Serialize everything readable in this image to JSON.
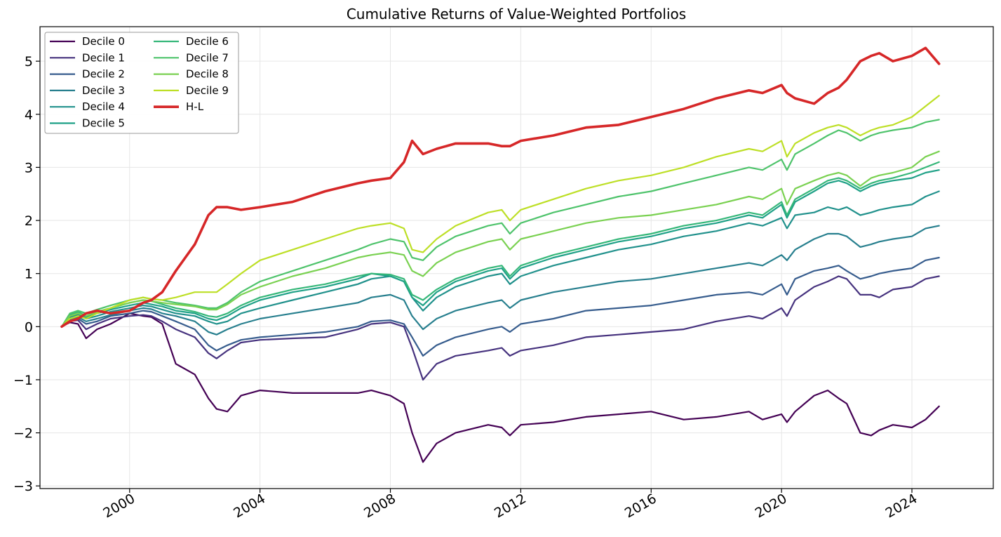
{
  "chart_data": {
    "type": "line",
    "title": "Cumulative Returns of Value-Weighted Portfolios",
    "xlabel": "",
    "ylabel": "",
    "x_ticks": [
      "2000",
      "2004",
      "2008",
      "2012",
      "2016",
      "2020",
      "2024"
    ],
    "y_ticks": [
      "−3",
      "−2",
      "−1",
      "0",
      "1",
      "2",
      "3",
      "4",
      "5"
    ],
    "xlim": [
      "1997-04-01",
      "2026-06-30"
    ],
    "ylim": [
      -3.05,
      5.65
    ],
    "grid": true,
    "legend_position": "top-left",
    "x_dates": [
      "1997-12",
      "1998-03",
      "1998-06",
      "1998-09",
      "1999-01",
      "1999-06",
      "2000-01",
      "2000-06",
      "2000-09",
      "2001-01",
      "2001-06",
      "2002-01",
      "2002-06",
      "2002-09",
      "2003-01",
      "2003-06",
      "2004-01",
      "2005-01",
      "2006-01",
      "2007-01",
      "2007-06",
      "2008-01",
      "2008-06",
      "2008-09",
      "2009-01",
      "2009-06",
      "2010-01",
      "2011-01",
      "2011-06",
      "2011-09",
      "2012-01",
      "2013-01",
      "2014-01",
      "2015-01",
      "2016-01",
      "2017-01",
      "2018-01",
      "2019-01",
      "2019-06",
      "2020-01",
      "2020-03",
      "2020-06",
      "2021-01",
      "2021-06",
      "2021-10",
      "2022-01",
      "2022-06",
      "2022-10",
      "2023-01",
      "2023-06",
      "2024-01",
      "2024-06",
      "2024-11"
    ],
    "series": [
      {
        "name": "Decile 0",
        "color": "#440154",
        "width": 2.2,
        "values": [
          0.0,
          0.08,
          0.05,
          -0.22,
          -0.05,
          0.05,
          0.25,
          0.2,
          0.18,
          0.05,
          -0.7,
          -0.9,
          -1.35,
          -1.55,
          -1.6,
          -1.3,
          -1.2,
          -1.25,
          -1.25,
          -1.25,
          -1.2,
          -1.3,
          -1.45,
          -2.0,
          -2.55,
          -2.2,
          -2.0,
          -1.85,
          -1.9,
          -2.05,
          -1.85,
          -1.8,
          -1.7,
          -1.65,
          -1.6,
          -1.75,
          -1.7,
          -1.6,
          -1.75,
          -1.65,
          -1.8,
          -1.6,
          -1.3,
          -1.2,
          -1.35,
          -1.45,
          -2.0,
          -2.05,
          -1.95,
          -1.85,
          -1.9,
          -1.75,
          -1.5
        ]
      },
      {
        "name": "Decile 1",
        "color": "#46327e",
        "width": 2.2,
        "values": [
          0.0,
          0.1,
          0.12,
          -0.05,
          0.05,
          0.15,
          0.2,
          0.22,
          0.2,
          0.1,
          -0.05,
          -0.2,
          -0.5,
          -0.6,
          -0.45,
          -0.3,
          -0.25,
          -0.22,
          -0.2,
          -0.05,
          0.05,
          0.08,
          0.0,
          -0.4,
          -1.0,
          -0.7,
          -0.55,
          -0.45,
          -0.4,
          -0.55,
          -0.45,
          -0.35,
          -0.2,
          -0.15,
          -0.1,
          -0.05,
          0.1,
          0.2,
          0.15,
          0.35,
          0.2,
          0.5,
          0.75,
          0.85,
          0.95,
          0.9,
          0.6,
          0.6,
          0.55,
          0.7,
          0.75,
          0.9,
          0.95
        ]
      },
      {
        "name": "Decile 2",
        "color": "#365c8d",
        "width": 2.2,
        "values": [
          0.0,
          0.12,
          0.15,
          0.05,
          0.1,
          0.2,
          0.25,
          0.3,
          0.28,
          0.2,
          0.1,
          -0.05,
          -0.35,
          -0.45,
          -0.35,
          -0.25,
          -0.2,
          -0.15,
          -0.1,
          0.0,
          0.1,
          0.12,
          0.05,
          -0.2,
          -0.55,
          -0.35,
          -0.2,
          -0.05,
          0.0,
          -0.1,
          0.05,
          0.15,
          0.3,
          0.35,
          0.4,
          0.5,
          0.6,
          0.65,
          0.6,
          0.8,
          0.6,
          0.9,
          1.05,
          1.1,
          1.15,
          1.05,
          0.9,
          0.95,
          1.0,
          1.05,
          1.1,
          1.25,
          1.3
        ]
      },
      {
        "name": "Decile 3",
        "color": "#277f8e",
        "width": 2.2,
        "values": [
          0.0,
          0.15,
          0.18,
          0.1,
          0.15,
          0.22,
          0.3,
          0.35,
          0.33,
          0.25,
          0.2,
          0.1,
          -0.1,
          -0.15,
          -0.05,
          0.05,
          0.15,
          0.25,
          0.35,
          0.45,
          0.55,
          0.6,
          0.5,
          0.2,
          -0.05,
          0.15,
          0.3,
          0.45,
          0.5,
          0.35,
          0.5,
          0.65,
          0.75,
          0.85,
          0.9,
          1.0,
          1.1,
          1.2,
          1.15,
          1.35,
          1.25,
          1.45,
          1.65,
          1.75,
          1.75,
          1.7,
          1.5,
          1.55,
          1.6,
          1.65,
          1.7,
          1.85,
          1.9
        ]
      },
      {
        "name": "Decile 4",
        "color": "#21918c",
        "width": 2.2,
        "values": [
          0.0,
          0.18,
          0.22,
          0.15,
          0.2,
          0.28,
          0.35,
          0.4,
          0.38,
          0.32,
          0.25,
          0.2,
          0.1,
          0.05,
          0.1,
          0.25,
          0.35,
          0.5,
          0.65,
          0.8,
          0.9,
          0.95,
          0.85,
          0.55,
          0.3,
          0.55,
          0.75,
          0.95,
          1.0,
          0.8,
          0.95,
          1.15,
          1.3,
          1.45,
          1.55,
          1.7,
          1.8,
          1.95,
          1.9,
          2.05,
          1.85,
          2.1,
          2.15,
          2.25,
          2.2,
          2.25,
          2.1,
          2.15,
          2.2,
          2.25,
          2.3,
          2.45,
          2.55
        ]
      },
      {
        "name": "Decile 5",
        "color": "#1fa187",
        "width": 2.2,
        "values": [
          0.0,
          0.2,
          0.25,
          0.18,
          0.25,
          0.32,
          0.4,
          0.45,
          0.42,
          0.38,
          0.3,
          0.25,
          0.15,
          0.12,
          0.2,
          0.35,
          0.5,
          0.65,
          0.75,
          0.9,
          1.0,
          0.95,
          0.85,
          0.55,
          0.4,
          0.65,
          0.85,
          1.05,
          1.1,
          0.9,
          1.1,
          1.3,
          1.45,
          1.6,
          1.7,
          1.85,
          1.95,
          2.1,
          2.05,
          2.3,
          2.05,
          2.35,
          2.55,
          2.7,
          2.75,
          2.7,
          2.55,
          2.65,
          2.7,
          2.75,
          2.8,
          2.9,
          2.95
        ]
      },
      {
        "name": "Decile 6",
        "color": "#35b779",
        "width": 2.2,
        "values": [
          0.0,
          0.22,
          0.28,
          0.2,
          0.28,
          0.35,
          0.45,
          0.5,
          0.48,
          0.42,
          0.35,
          0.28,
          0.2,
          0.18,
          0.25,
          0.4,
          0.55,
          0.7,
          0.8,
          0.95,
          1.0,
          0.98,
          0.9,
          0.6,
          0.5,
          0.7,
          0.9,
          1.1,
          1.15,
          0.95,
          1.15,
          1.35,
          1.5,
          1.65,
          1.75,
          1.9,
          2.0,
          2.15,
          2.1,
          2.35,
          2.1,
          2.4,
          2.6,
          2.75,
          2.8,
          2.75,
          2.6,
          2.7,
          2.75,
          2.8,
          2.9,
          3.0,
          3.1
        ]
      },
      {
        "name": "Decile 7",
        "color": "#4ec36b",
        "width": 2.2,
        "values": [
          0.0,
          0.25,
          0.3,
          0.25,
          0.32,
          0.4,
          0.5,
          0.55,
          0.52,
          0.5,
          0.45,
          0.4,
          0.35,
          0.35,
          0.45,
          0.65,
          0.85,
          1.05,
          1.25,
          1.45,
          1.55,
          1.65,
          1.6,
          1.3,
          1.25,
          1.5,
          1.7,
          1.9,
          1.95,
          1.75,
          1.95,
          2.15,
          2.3,
          2.45,
          2.55,
          2.7,
          2.85,
          3.0,
          2.95,
          3.15,
          2.95,
          3.25,
          3.45,
          3.6,
          3.7,
          3.65,
          3.5,
          3.6,
          3.65,
          3.7,
          3.75,
          3.85,
          3.9
        ]
      },
      {
        "name": "Decile 8",
        "color": "#7ad151",
        "width": 2.2,
        "values": [
          0.0,
          0.2,
          0.25,
          0.2,
          0.28,
          0.35,
          0.45,
          0.5,
          0.48,
          0.45,
          0.42,
          0.38,
          0.32,
          0.32,
          0.42,
          0.6,
          0.75,
          0.95,
          1.1,
          1.3,
          1.35,
          1.4,
          1.35,
          1.05,
          0.95,
          1.2,
          1.4,
          1.6,
          1.65,
          1.45,
          1.65,
          1.8,
          1.95,
          2.05,
          2.1,
          2.2,
          2.3,
          2.45,
          2.4,
          2.6,
          2.3,
          2.6,
          2.75,
          2.85,
          2.9,
          2.85,
          2.65,
          2.8,
          2.85,
          2.9,
          3.0,
          3.2,
          3.3
        ]
      },
      {
        "name": "Decile 9",
        "color": "#bddf26",
        "width": 2.2,
        "values": [
          0.0,
          0.15,
          0.2,
          0.15,
          0.25,
          0.35,
          0.5,
          0.55,
          0.52,
          0.5,
          0.55,
          0.65,
          0.65,
          0.65,
          0.8,
          1.0,
          1.25,
          1.45,
          1.65,
          1.85,
          1.9,
          1.95,
          1.85,
          1.45,
          1.4,
          1.65,
          1.9,
          2.15,
          2.2,
          2.0,
          2.2,
          2.4,
          2.6,
          2.75,
          2.85,
          3.0,
          3.2,
          3.35,
          3.3,
          3.5,
          3.2,
          3.45,
          3.65,
          3.75,
          3.8,
          3.75,
          3.6,
          3.7,
          3.75,
          3.8,
          3.95,
          4.15,
          4.35
        ]
      },
      {
        "name": "H-L",
        "color": "#d62728",
        "width": 3.6,
        "values": [
          0.0,
          0.1,
          0.15,
          0.25,
          0.3,
          0.25,
          0.3,
          0.45,
          0.5,
          0.65,
          1.05,
          1.55,
          2.1,
          2.25,
          2.25,
          2.2,
          2.25,
          2.35,
          2.55,
          2.7,
          2.75,
          2.8,
          3.1,
          3.5,
          3.25,
          3.35,
          3.45,
          3.45,
          3.4,
          3.4,
          3.5,
          3.6,
          3.75,
          3.8,
          3.95,
          4.1,
          4.3,
          4.45,
          4.4,
          4.55,
          4.4,
          4.3,
          4.2,
          4.4,
          4.5,
          4.65,
          5.0,
          5.1,
          5.15,
          5.0,
          5.1,
          5.25,
          4.95
        ]
      }
    ]
  },
  "legend": {
    "columns": [
      [
        "Decile 0",
        "Decile 1",
        "Decile 2",
        "Decile 3",
        "Decile 4",
        "Decile 5"
      ],
      [
        "Decile 6",
        "Decile 7",
        "Decile 8",
        "Decile 9",
        "H-L"
      ]
    ]
  }
}
